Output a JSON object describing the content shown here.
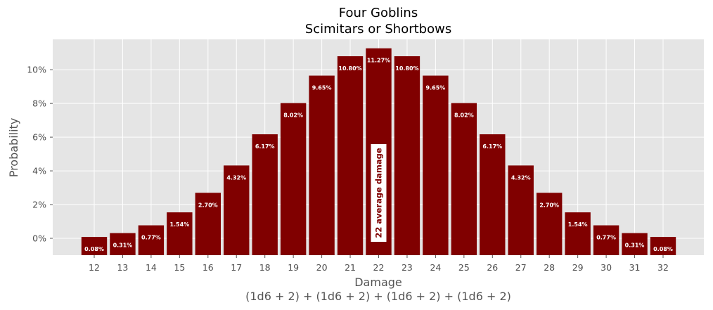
{
  "chart_data": {
    "type": "bar",
    "title": "Four Goblins",
    "subtitle": "Scimitars or Shortbows",
    "xlabel": "Damage",
    "xlabel_line2": "(1d6 + 2) + (1d6 + 2) + (1d6 + 2) + (1d6 + 2)",
    "ylabel": "Probability",
    "categories": [
      "12",
      "13",
      "14",
      "15",
      "16",
      "17",
      "18",
      "19",
      "20",
      "21",
      "22",
      "23",
      "24",
      "25",
      "26",
      "27",
      "28",
      "29",
      "30",
      "31",
      "32"
    ],
    "values": [
      0.08,
      0.31,
      0.77,
      1.54,
      2.7,
      4.32,
      6.17,
      8.02,
      9.65,
      10.8,
      11.27,
      10.8,
      9.65,
      8.02,
      6.17,
      4.32,
      2.7,
      1.54,
      0.77,
      0.31,
      0.08
    ],
    "value_labels": [
      "0.08%",
      "0.31%",
      "0.77%",
      "1.54%",
      "2.70%",
      "4.32%",
      "6.17%",
      "8.02%",
      "9.65%",
      "10.80%",
      "11.27%",
      "10.80%",
      "9.65%",
      "8.02%",
      "6.17%",
      "4.32%",
      "2.70%",
      "1.54%",
      "0.77%",
      "0.31%",
      "0.08%"
    ],
    "ylim": [
      -1,
      11.8
    ],
    "yticks": [
      0,
      2,
      4,
      6,
      8,
      10
    ],
    "ytick_labels": [
      "0%",
      "2%",
      "4%",
      "6%",
      "8%",
      "10%"
    ],
    "grid": true,
    "annotation": "22 average damage",
    "bar_color": "#800000",
    "background_color": "#e5e5e5",
    "grid_color": "#ffffff"
  }
}
